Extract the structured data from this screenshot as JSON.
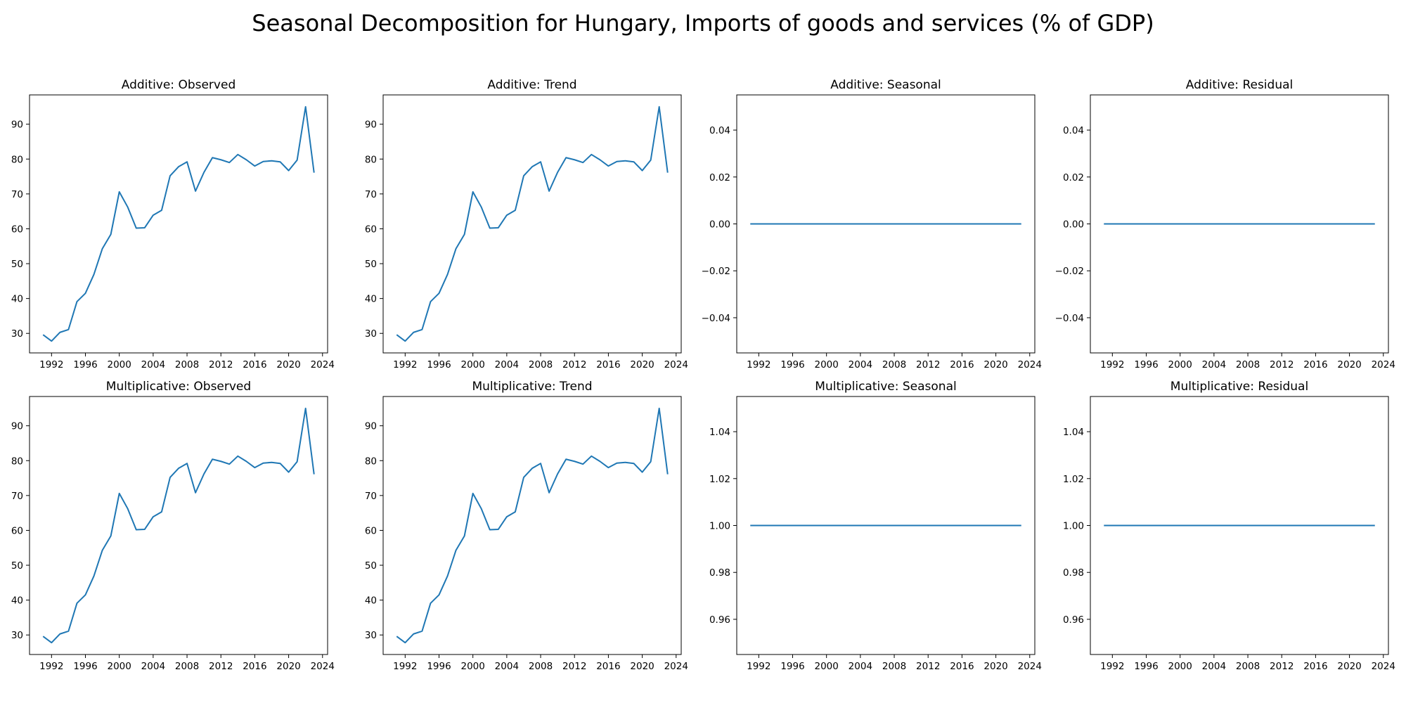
{
  "figure": {
    "title": "Seasonal Decomposition for Hungary, Imports of goods and services (% of GDP)"
  },
  "line_color": "#1f77b4",
  "chart_data": [
    {
      "type": "line",
      "title": "Additive: Observed",
      "x": [
        1991,
        1992,
        1993,
        1994,
        1995,
        1996,
        1997,
        1998,
        1999,
        2000,
        2001,
        2002,
        2003,
        2004,
        2005,
        2006,
        2007,
        2008,
        2009,
        2010,
        2011,
        2012,
        2013,
        2014,
        2015,
        2016,
        2017,
        2018,
        2019,
        2020,
        2021,
        2022,
        2023
      ],
      "y": [
        29.6,
        27.8,
        30.3,
        31.1,
        39.1,
        41.5,
        46.9,
        54.3,
        58.4,
        70.6,
        66.2,
        60.2,
        60.3,
        63.9,
        65.3,
        75.2,
        77.8,
        79.2,
        70.8,
        76.2,
        80.4,
        79.8,
        79.0,
        81.3,
        79.8,
        78.0,
        79.3,
        79.5,
        79.2,
        76.7,
        79.7,
        95.0,
        76.1
      ],
      "xlim": [
        1989.4,
        2024.6
      ],
      "ylim": [
        24.4,
        98.4
      ],
      "xticks": [
        1992,
        1996,
        2000,
        2004,
        2008,
        2012,
        2016,
        2020,
        2024
      ],
      "yticks": [
        30,
        40,
        50,
        60,
        70,
        80,
        90
      ],
      "ytick_labels": [
        "30",
        "40",
        "50",
        "60",
        "70",
        "80",
        "90"
      ]
    },
    {
      "type": "line",
      "title": "Additive: Trend",
      "x": [
        1991,
        1992,
        1993,
        1994,
        1995,
        1996,
        1997,
        1998,
        1999,
        2000,
        2001,
        2002,
        2003,
        2004,
        2005,
        2006,
        2007,
        2008,
        2009,
        2010,
        2011,
        2012,
        2013,
        2014,
        2015,
        2016,
        2017,
        2018,
        2019,
        2020,
        2021,
        2022,
        2023
      ],
      "y": [
        29.6,
        27.8,
        30.3,
        31.1,
        39.1,
        41.5,
        46.9,
        54.3,
        58.4,
        70.6,
        66.2,
        60.2,
        60.3,
        63.9,
        65.3,
        75.2,
        77.8,
        79.2,
        70.8,
        76.2,
        80.4,
        79.8,
        79.0,
        81.3,
        79.8,
        78.0,
        79.3,
        79.5,
        79.2,
        76.7,
        79.7,
        95.0,
        76.1
      ],
      "xlim": [
        1989.4,
        2024.6
      ],
      "ylim": [
        24.4,
        98.4
      ],
      "xticks": [
        1992,
        1996,
        2000,
        2004,
        2008,
        2012,
        2016,
        2020,
        2024
      ],
      "yticks": [
        30,
        40,
        50,
        60,
        70,
        80,
        90
      ],
      "ytick_labels": [
        "30",
        "40",
        "50",
        "60",
        "70",
        "80",
        "90"
      ]
    },
    {
      "type": "line",
      "title": "Additive: Seasonal",
      "x": [
        1991,
        2023
      ],
      "y": [
        0.0,
        0.0
      ],
      "xlim": [
        1989.4,
        2024.6
      ],
      "ylim": [
        -0.055,
        0.055
      ],
      "xticks": [
        1992,
        1996,
        2000,
        2004,
        2008,
        2012,
        2016,
        2020,
        2024
      ],
      "yticks": [
        -0.04,
        -0.02,
        0.0,
        0.02,
        0.04
      ],
      "ytick_labels": [
        "−0.04",
        "−0.02",
        "0.00",
        "0.02",
        "0.04"
      ]
    },
    {
      "type": "line",
      "title": "Additive: Residual",
      "x": [
        1991,
        2023
      ],
      "y": [
        0.0,
        0.0
      ],
      "xlim": [
        1989.4,
        2024.6
      ],
      "ylim": [
        -0.055,
        0.055
      ],
      "xticks": [
        1992,
        1996,
        2000,
        2004,
        2008,
        2012,
        2016,
        2020,
        2024
      ],
      "yticks": [
        -0.04,
        -0.02,
        0.0,
        0.02,
        0.04
      ],
      "ytick_labels": [
        "−0.04",
        "−0.02",
        "0.00",
        "0.02",
        "0.04"
      ]
    },
    {
      "type": "line",
      "title": "Multiplicative: Observed",
      "x": [
        1991,
        1992,
        1993,
        1994,
        1995,
        1996,
        1997,
        1998,
        1999,
        2000,
        2001,
        2002,
        2003,
        2004,
        2005,
        2006,
        2007,
        2008,
        2009,
        2010,
        2011,
        2012,
        2013,
        2014,
        2015,
        2016,
        2017,
        2018,
        2019,
        2020,
        2021,
        2022,
        2023
      ],
      "y": [
        29.6,
        27.8,
        30.3,
        31.1,
        39.1,
        41.5,
        46.9,
        54.3,
        58.4,
        70.6,
        66.2,
        60.2,
        60.3,
        63.9,
        65.3,
        75.2,
        77.8,
        79.2,
        70.8,
        76.2,
        80.4,
        79.8,
        79.0,
        81.3,
        79.8,
        78.0,
        79.3,
        79.5,
        79.2,
        76.7,
        79.7,
        95.0,
        76.1
      ],
      "xlim": [
        1989.4,
        2024.6
      ],
      "ylim": [
        24.4,
        98.4
      ],
      "xticks": [
        1992,
        1996,
        2000,
        2004,
        2008,
        2012,
        2016,
        2020,
        2024
      ],
      "yticks": [
        30,
        40,
        50,
        60,
        70,
        80,
        90
      ],
      "ytick_labels": [
        "30",
        "40",
        "50",
        "60",
        "70",
        "80",
        "90"
      ]
    },
    {
      "type": "line",
      "title": "Multiplicative: Trend",
      "x": [
        1991,
        1992,
        1993,
        1994,
        1995,
        1996,
        1997,
        1998,
        1999,
        2000,
        2001,
        2002,
        2003,
        2004,
        2005,
        2006,
        2007,
        2008,
        2009,
        2010,
        2011,
        2012,
        2013,
        2014,
        2015,
        2016,
        2017,
        2018,
        2019,
        2020,
        2021,
        2022,
        2023
      ],
      "y": [
        29.6,
        27.8,
        30.3,
        31.1,
        39.1,
        41.5,
        46.9,
        54.3,
        58.4,
        70.6,
        66.2,
        60.2,
        60.3,
        63.9,
        65.3,
        75.2,
        77.8,
        79.2,
        70.8,
        76.2,
        80.4,
        79.8,
        79.0,
        81.3,
        79.8,
        78.0,
        79.3,
        79.5,
        79.2,
        76.7,
        79.7,
        95.0,
        76.1
      ],
      "xlim": [
        1989.4,
        2024.6
      ],
      "ylim": [
        24.4,
        98.4
      ],
      "xticks": [
        1992,
        1996,
        2000,
        2004,
        2008,
        2012,
        2016,
        2020,
        2024
      ],
      "yticks": [
        30,
        40,
        50,
        60,
        70,
        80,
        90
      ],
      "ytick_labels": [
        "30",
        "40",
        "50",
        "60",
        "70",
        "80",
        "90"
      ]
    },
    {
      "type": "line",
      "title": "Multiplicative: Seasonal",
      "x": [
        1991,
        2023
      ],
      "y": [
        1.0,
        1.0
      ],
      "xlim": [
        1989.4,
        2024.6
      ],
      "ylim": [
        0.945,
        1.055
      ],
      "xticks": [
        1992,
        1996,
        2000,
        2004,
        2008,
        2012,
        2016,
        2020,
        2024
      ],
      "yticks": [
        0.96,
        0.98,
        1.0,
        1.02,
        1.04
      ],
      "ytick_labels": [
        "0.96",
        "0.98",
        "1.00",
        "1.02",
        "1.04"
      ]
    },
    {
      "type": "line",
      "title": "Multiplicative: Residual",
      "x": [
        1991,
        2023
      ],
      "y": [
        1.0,
        1.0
      ],
      "xlim": [
        1989.4,
        2024.6
      ],
      "ylim": [
        0.945,
        1.055
      ],
      "xticks": [
        1992,
        1996,
        2000,
        2004,
        2008,
        2012,
        2016,
        2020,
        2024
      ],
      "yticks": [
        0.96,
        0.98,
        1.0,
        1.02,
        1.04
      ],
      "ytick_labels": [
        "0.96",
        "0.98",
        "1.00",
        "1.02",
        "1.04"
      ]
    }
  ]
}
